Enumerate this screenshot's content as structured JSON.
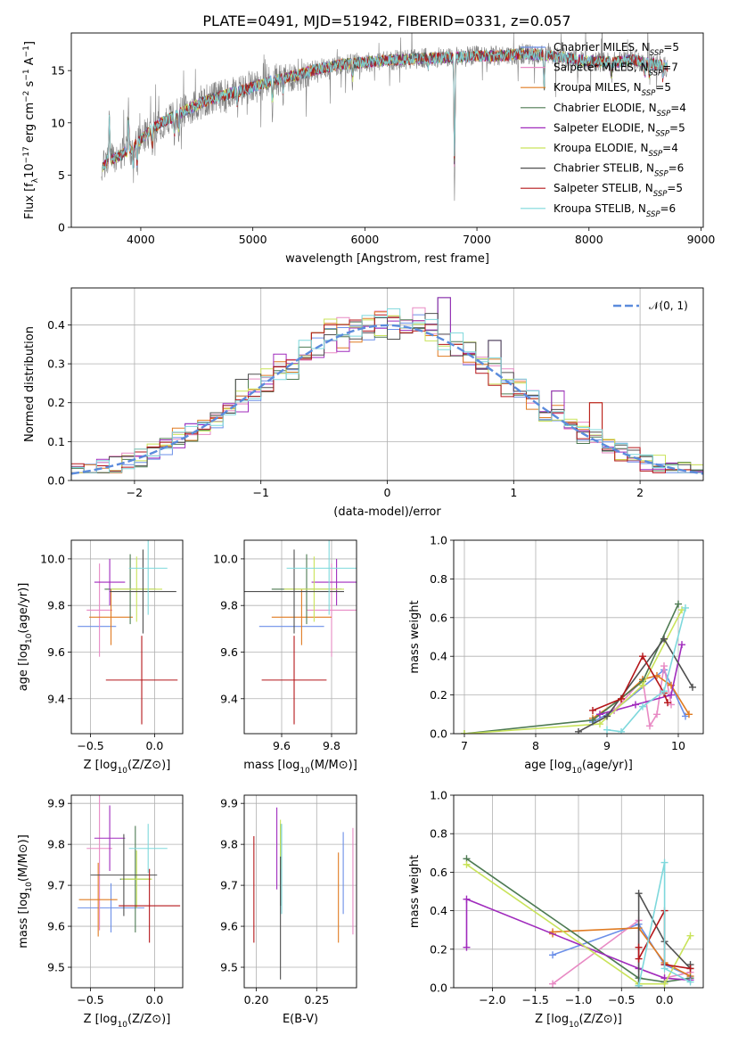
{
  "title": "PLATE=0491, MJD=51942, FIBERID=0331, z=0.057",
  "colors": {
    "axis": "#000000",
    "grid": "#b0b0b0",
    "gaussian": "#5b8bdc"
  },
  "models": [
    {
      "name": "Chabrier MILES, N$_{SSP}$=5",
      "label_main": "Chabrier MILES, N",
      "label_sub": "SSP",
      "label_end": "=5",
      "color": "#6b8fe8"
    },
    {
      "name": "Salpeter MILES, N$_{SSP}$=7",
      "label_main": "Salpeter MILES, N",
      "label_sub": "SSP",
      "label_end": "=7",
      "color": "#e88ac4"
    },
    {
      "name": "Kroupa MILES, N$_{SSP}$=5",
      "label_main": "Kroupa MILES, N",
      "label_sub": "SSP",
      "label_end": "=5",
      "color": "#e07b22"
    },
    {
      "name": "Chabrier ELODIE, N$_{SSP}$=4",
      "label_main": "Chabrier ELODIE, N",
      "label_sub": "SSP",
      "label_end": "=4",
      "color": "#4d7a52"
    },
    {
      "name": "Salpeter ELODIE, N$_{SSP}$=5",
      "label_main": "Salpeter ELODIE, N",
      "label_sub": "SSP",
      "label_end": "=5",
      "color": "#a02bbd"
    },
    {
      "name": "Kroupa ELODIE, N$_{SSP}$=4",
      "label_main": "Kroupa ELODIE, N",
      "label_sub": "SSP",
      "label_end": "=4",
      "color": "#c9e35a"
    },
    {
      "name": "Chabrier STELIB, N$_{SSP}$=6",
      "label_main": "Chabrier STELIB, N",
      "label_sub": "SSP",
      "label_end": "=6",
      "color": "#505050"
    },
    {
      "name": "Salpeter STELIB, N$_{SSP}$=5",
      "label_main": "Salpeter STELIB, N",
      "label_sub": "SSP",
      "label_end": "=5",
      "color": "#b5161a"
    },
    {
      "name": "Kroupa STELIB, N$_{SSP}$=6",
      "label_main": "Kroupa STELIB, N",
      "label_sub": "SSP",
      "label_end": "=6",
      "color": "#7ed8dc"
    }
  ],
  "chart_data": [
    {
      "id": "spectrum",
      "type": "line",
      "xlabel": "wavelength [Angstrom, rest frame]",
      "ylabel_main": "Flux [f",
      "ylabel_sub": "λ",
      "ylabel_mid": "10",
      "ylabel_sup1": "−17",
      "ylabel_mid2": " erg cm",
      "ylabel_sup2": "−2",
      "ylabel_mid3": " s",
      "ylabel_sup3": "−1",
      "ylabel_mid4": " A",
      "ylabel_sup4": "−1",
      "ylabel_end": "]",
      "xlim": [
        3380,
        9020
      ],
      "ylim": [
        0,
        18.6
      ],
      "xticks": [
        4000,
        5000,
        6000,
        7000,
        8000,
        9000
      ],
      "yticks": [
        0,
        5,
        10,
        15
      ],
      "data_color": "#808080",
      "continuum": [
        [
          3650,
          5.6
        ],
        [
          3700,
          6.4
        ],
        [
          3800,
          6.8
        ],
        [
          3900,
          7.4
        ],
        [
          4000,
          8.4
        ],
        [
          4100,
          9.4
        ],
        [
          4200,
          10.1
        ],
        [
          4400,
          11.2
        ],
        [
          4600,
          12.2
        ],
        [
          4800,
          12.8
        ],
        [
          5000,
          13.4
        ],
        [
          5200,
          14.1
        ],
        [
          5400,
          14.6
        ],
        [
          5600,
          15.2
        ],
        [
          5800,
          15.6
        ],
        [
          6000,
          15.8
        ],
        [
          6200,
          16.0
        ],
        [
          6400,
          16.1
        ],
        [
          6600,
          16.2
        ],
        [
          6800,
          16.3
        ],
        [
          7000,
          16.4
        ],
        [
          7200,
          16.4
        ],
        [
          7400,
          16.6
        ],
        [
          7600,
          16.5
        ],
        [
          7800,
          16.2
        ],
        [
          8000,
          15.9
        ],
        [
          8200,
          15.8
        ],
        [
          8400,
          16.0
        ],
        [
          8600,
          15.6
        ],
        [
          8700,
          15.4
        ]
      ],
      "features": [
        [
          3720,
          5.0
        ],
        [
          3890,
          4.0
        ],
        [
          3933,
          -2.5
        ],
        [
          3968,
          -2.5
        ],
        [
          4102,
          -2.0
        ],
        [
          4300,
          -2.2
        ],
        [
          4340,
          -2.0
        ],
        [
          4861,
          -1.5
        ],
        [
          5175,
          -2.5
        ],
        [
          5270,
          -1.5
        ],
        [
          5890,
          -2.0
        ],
        [
          6563,
          -1.0
        ],
        [
          6800,
          -14.0
        ],
        [
          7600,
          -4.0
        ],
        [
          7900,
          -1.0
        ],
        [
          8200,
          -1.5
        ],
        [
          8500,
          -1.5
        ],
        [
          8540,
          -1.5
        ],
        [
          8660,
          -1.5
        ]
      ]
    },
    {
      "id": "residuals",
      "type": "histogram",
      "xlabel": "(data-model)/error",
      "ylabel": "Normed distribution",
      "xlim": [
        -2.5,
        2.5
      ],
      "ylim": [
        0,
        0.495
      ],
      "xticks": [
        -2,
        -1,
        0,
        1,
        2
      ],
      "yticks": [
        0.0,
        0.1,
        0.2,
        0.3,
        0.4
      ],
      "legend": "𝒩(0, 1)",
      "legend_location": "upper right",
      "bin_width": 0.1,
      "gaussian_mean": 0,
      "gaussian_sigma": 1,
      "peak_bins": [
        [
          0.4,
          0.47
        ],
        [
          0.8,
          0.36
        ],
        [
          1.6,
          0.2
        ],
        [
          2.0,
          0.17
        ],
        [
          -0.6,
          0.38
        ],
        [
          -1.2,
          0.26
        ],
        [
          0.1,
          0.38
        ],
        [
          -0.2,
          0.38
        ],
        [
          0.5,
          0.35
        ],
        [
          1.3,
          0.23
        ]
      ]
    },
    {
      "id": "age-vs-Z",
      "type": "errorbar",
      "xlabel_main": "Z [log",
      "xlabel_sub": "10",
      "xlabel_end": "(Z/Z⊙)]",
      "ylabel_main": "age  [log",
      "ylabel_sub": "10",
      "ylabel_end": "(age/yr)]",
      "xlim": [
        -0.65,
        0.22
      ],
      "ylim": [
        9.25,
        10.08
      ],
      "xticks": [
        -0.5,
        0.0
      ],
      "yticks": [
        9.4,
        9.6,
        9.8,
        10.0
      ],
      "points": [
        {
          "x": -0.45,
          "y": 9.71,
          "xerr": 0.15,
          "yerr": 0.0
        },
        {
          "x": -0.43,
          "y": 9.78,
          "xerr": 0.1,
          "yerr": 0.2
        },
        {
          "x": -0.34,
          "y": 9.75,
          "xerr": 0.17,
          "yerr": 0.12
        },
        {
          "x": -0.19,
          "y": 9.87,
          "xerr": 0.2,
          "yerr": 0.15
        },
        {
          "x": -0.35,
          "y": 9.9,
          "xerr": 0.12,
          "yerr": 0.1
        },
        {
          "x": -0.14,
          "y": 9.87,
          "xerr": 0.2,
          "yerr": 0.14
        },
        {
          "x": -0.09,
          "y": 9.86,
          "xerr": 0.26,
          "yerr": 0.18
        },
        {
          "x": -0.1,
          "y": 9.48,
          "xerr": 0.28,
          "yerr": 0.19
        },
        {
          "x": -0.05,
          "y": 9.96,
          "xerr": 0.15,
          "yerr": 0.2
        }
      ]
    },
    {
      "id": "age-vs-mass",
      "type": "errorbar",
      "xlabel_main": "mass [log",
      "xlabel_sub": "10",
      "xlabel_end": "(M/M⊙)]",
      "xlim": [
        9.45,
        9.9
      ],
      "ylim": [
        9.25,
        10.08
      ],
      "xticks": [
        9.6,
        9.8
      ],
      "yticks": [
        9.4,
        9.6,
        9.8,
        10.0
      ],
      "points": [
        {
          "x": 9.64,
          "y": 9.71,
          "xerr": 0.13,
          "yerr": 0.0
        },
        {
          "x": 9.8,
          "y": 9.78,
          "xerr": 0.1,
          "yerr": 0.2
        },
        {
          "x": 9.68,
          "y": 9.75,
          "xerr": 0.12,
          "yerr": 0.12
        },
        {
          "x": 9.7,
          "y": 9.87,
          "xerr": 0.14,
          "yerr": 0.15
        },
        {
          "x": 9.82,
          "y": 9.9,
          "xerr": 0.1,
          "yerr": 0.1
        },
        {
          "x": 9.73,
          "y": 9.87,
          "xerr": 0.12,
          "yerr": 0.14
        },
        {
          "x": 9.65,
          "y": 9.86,
          "xerr": 0.2,
          "yerr": 0.18
        },
        {
          "x": 9.65,
          "y": 9.48,
          "xerr": 0.13,
          "yerr": 0.19
        },
        {
          "x": 9.79,
          "y": 9.96,
          "xerr": 0.17,
          "yerr": 0.2
        }
      ]
    },
    {
      "id": "massweight-vs-age",
      "type": "line",
      "xlabel_main": "age  [log",
      "xlabel_sub": "10",
      "xlabel_end": "(age/yr)]",
      "ylabel": "mass weight",
      "xlim": [
        6.85,
        10.35
      ],
      "ylim": [
        0,
        1.0
      ],
      "xticks": [
        7,
        8,
        9,
        10
      ],
      "yticks": [
        0.0,
        0.2,
        0.4,
        0.6,
        0.8,
        1.0
      ],
      "series": [
        {
          "x": [
            8.8,
            9.1,
            9.8,
            10.1
          ],
          "y": [
            0.06,
            0.12,
            0.33,
            0.09
          ]
        },
        {
          "x": [
            9.1,
            9.5,
            9.6,
            9.7,
            9.8,
            9.9
          ],
          "y": [
            0.12,
            0.28,
            0.04,
            0.1,
            0.35,
            0.15
          ]
        },
        {
          "x": [
            8.8,
            9.2,
            9.5,
            9.7,
            9.9,
            10.15
          ],
          "y": [
            0.08,
            0.18,
            0.28,
            0.3,
            0.25,
            0.1
          ]
        },
        {
          "x": [
            7.0,
            8.8,
            9.5,
            10.0
          ],
          "y": [
            0.0,
            0.07,
            0.27,
            0.67
          ]
        },
        {
          "x": [
            8.9,
            9.4,
            9.9,
            10.05
          ],
          "y": [
            0.1,
            0.15,
            0.2,
            0.46
          ]
        },
        {
          "x": [
            7.0,
            8.9,
            9.5,
            10.05
          ],
          "y": [
            0.0,
            0.05,
            0.25,
            0.64
          ]
        },
        {
          "x": [
            8.6,
            9.0,
            9.8,
            10.2
          ],
          "y": [
            0.01,
            0.09,
            0.49,
            0.24
          ]
        },
        {
          "x": [
            8.8,
            9.2,
            9.5,
            9.8,
            9.85
          ],
          "y": [
            0.12,
            0.18,
            0.4,
            0.21,
            0.16
          ]
        },
        {
          "x": [
            9.0,
            9.2,
            9.5,
            9.8,
            10.1
          ],
          "y": [
            0.02,
            0.01,
            0.14,
            0.22,
            0.65
          ]
        }
      ]
    },
    {
      "id": "mass-vs-Z",
      "type": "errorbar",
      "xlabel_main": "Z [log",
      "xlabel_sub": "10",
      "xlabel_end": "(Z/Z⊙)]",
      "ylabel_main": "mass [log",
      "ylabel_sub": "10",
      "ylabel_end": "(M/M⊙)]",
      "xlim": [
        -0.65,
        0.22
      ],
      "ylim": [
        9.45,
        9.92
      ],
      "xticks": [
        -0.5,
        0.0
      ],
      "yticks": [
        9.5,
        9.6,
        9.7,
        9.8,
        9.9
      ],
      "points": [
        {
          "x": -0.34,
          "y": 9.645,
          "xerr": 0.26,
          "yerr": 0.06
        },
        {
          "x": -0.43,
          "y": 9.79,
          "xerr": 0.1,
          "yerr": 0.2
        },
        {
          "x": -0.44,
          "y": 9.665,
          "xerr": 0.15,
          "yerr": 0.09
        },
        {
          "x": -0.15,
          "y": 9.715,
          "xerr": 0.12,
          "yerr": 0.13
        },
        {
          "x": -0.35,
          "y": 9.815,
          "xerr": 0.12,
          "yerr": 0.08
        },
        {
          "x": -0.14,
          "y": 9.715,
          "xerr": 0.12,
          "yerr": 0.07
        },
        {
          "x": -0.24,
          "y": 9.725,
          "xerr": 0.26,
          "yerr": 0.1
        },
        {
          "x": -0.04,
          "y": 9.65,
          "xerr": 0.24,
          "yerr": 0.09
        },
        {
          "x": -0.05,
          "y": 9.79,
          "xerr": 0.15,
          "yerr": 0.06
        }
      ]
    },
    {
      "id": "mass-vs-EBV",
      "type": "errorbar",
      "xlabel": "E(B-V)",
      "xlim": [
        0.19,
        0.283
      ],
      "ylim": [
        9.45,
        9.92
      ],
      "xticks": [
        0.2,
        0.25
      ],
      "yticks": [
        9.5,
        9.6,
        9.7,
        9.8,
        9.9
      ],
      "points": [
        {
          "x": 0.272,
          "y": 9.73,
          "xerr": 0,
          "yerr": 0.1
        },
        {
          "x": 0.28,
          "y": 9.71,
          "xerr": 0,
          "yerr": 0.13
        },
        {
          "x": 0.268,
          "y": 9.67,
          "xerr": 0,
          "yerr": 0.11
        },
        {
          "x": 0.22,
          "y": 9.75,
          "xerr": 0,
          "yerr": 0.1
        },
        {
          "x": 0.217,
          "y": 9.79,
          "xerr": 0,
          "yerr": 0.1
        },
        {
          "x": 0.22,
          "y": 9.8,
          "xerr": 0,
          "yerr": 0.06
        },
        {
          "x": 0.22,
          "y": 9.62,
          "xerr": 0,
          "yerr": 0.15
        },
        {
          "x": 0.198,
          "y": 9.69,
          "xerr": 0,
          "yerr": 0.13
        },
        {
          "x": 0.221,
          "y": 9.74,
          "xerr": 0,
          "yerr": 0.11
        }
      ]
    },
    {
      "id": "massweight-vs-Z",
      "type": "line",
      "xlabel_main": "Z [log",
      "xlabel_sub": "10",
      "xlabel_end": "(Z/Z⊙)]",
      "ylabel": "mass weight",
      "xlim": [
        -2.45,
        0.45
      ],
      "ylim": [
        0,
        1.0
      ],
      "xticks": [
        -2.0,
        -1.5,
        -1.0,
        -0.5,
        0.0
      ],
      "yticks": [
        0.0,
        0.2,
        0.4,
        0.6,
        0.8,
        1.0
      ],
      "series": [
        {
          "x": [
            -1.3,
            -0.3,
            0.0,
            0.3
          ],
          "y": [
            0.17,
            0.33,
            0.12,
            0.06
          ]
        },
        {
          "x": [
            -1.3,
            -0.3,
            -0.3,
            0.0,
            0.3
          ],
          "y": [
            0.02,
            0.35,
            0.1,
            0.05,
            0.08
          ]
        },
        {
          "x": [
            -1.3,
            -1.3,
            -0.3,
            0.0,
            0.3
          ],
          "y": [
            0.28,
            0.29,
            0.31,
            0.13,
            0.06
          ]
        },
        {
          "x": [
            -2.3,
            -0.3,
            0.0,
            0.3
          ],
          "y": [
            0.67,
            0.05,
            0.03,
            0.05
          ]
        },
        {
          "x": [
            -2.3,
            -2.3,
            -0.3,
            0.0,
            0.3
          ],
          "y": [
            0.21,
            0.46,
            0.1,
            0.05,
            0.04
          ]
        },
        {
          "x": [
            -2.3,
            -0.3,
            0.0,
            0.3
          ],
          "y": [
            0.64,
            0.02,
            0.02,
            0.27
          ]
        },
        {
          "x": [
            -0.3,
            -0.3,
            0.0,
            0.3,
            0.3
          ],
          "y": [
            0.01,
            0.49,
            0.24,
            0.1,
            0.12
          ]
        },
        {
          "x": [
            -0.3,
            -0.3,
            0.0,
            0.0,
            0.3
          ],
          "y": [
            0.21,
            0.15,
            0.4,
            0.12,
            0.1
          ]
        },
        {
          "x": [
            -0.3,
            0.0,
            0.0,
            0.3
          ],
          "y": [
            0.01,
            0.65,
            0.1,
            0.03
          ]
        }
      ]
    }
  ]
}
